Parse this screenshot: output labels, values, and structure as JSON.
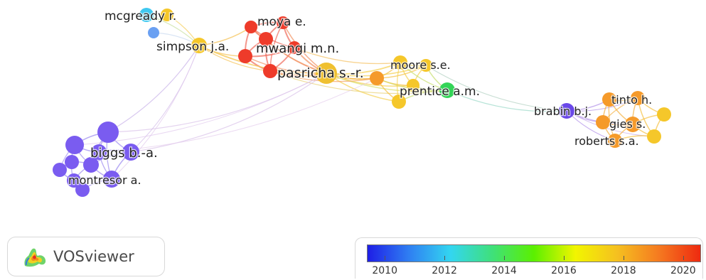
{
  "labels": {
    "mcgready": "mcgready r.",
    "moya": "moya e.",
    "simpson": "simpson j.a.",
    "mwangi": "mwangi m.n.",
    "pasricha": "pasricha s.-r.",
    "moore": "moore s.e.",
    "prentice": "prentice a.m.",
    "brabin": "brabin b.j.",
    "tinto": "tinto h.",
    "gies": "gies s.",
    "roberts": "roberts s.a.",
    "biggs": "biggs b.-a.",
    "montresor": "montresor a."
  },
  "logo": {
    "text": "VOSviewer"
  },
  "legend": {
    "ticks": [
      "2010",
      "2012",
      "2014",
      "2016",
      "2018",
      "2020"
    ],
    "range": [
      2009.4,
      2020.6
    ],
    "colors": [
      "#1e1ee6",
      "#2f7ff2",
      "#33d6f0",
      "#3fe07a",
      "#5bf000",
      "#f2f500",
      "#f5c020",
      "#f57a20",
      "#ee2a10"
    ]
  }
}
